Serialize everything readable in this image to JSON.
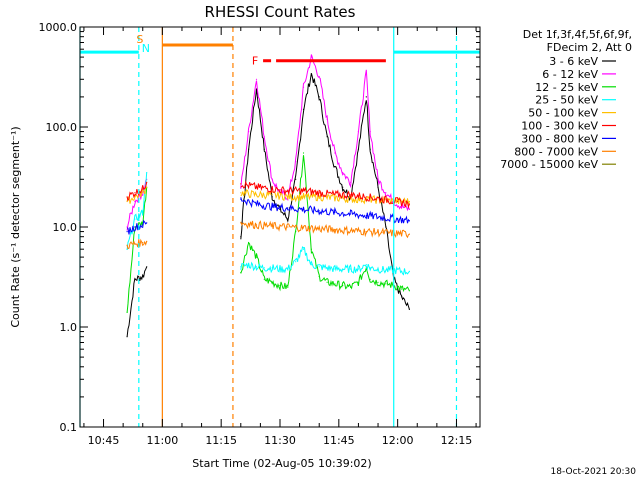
{
  "chart_data": {
    "type": "line",
    "title": "RHESSI Count Rates",
    "xlabel": "Start Time (02-Aug-05 10:39:02)",
    "ylabel": "Count Rate (s⁻¹ detector segment⁻¹)",
    "yscale": "log",
    "ylim": [
      0.1,
      1000
    ],
    "xlim": [
      "10:39",
      "12:21"
    ],
    "xticks": [
      "10:45",
      "11:00",
      "11:15",
      "11:30",
      "11:45",
      "12:00",
      "12:15"
    ],
    "yticks": [
      "0.1",
      "1.0",
      "10.0",
      "100.0",
      "1000.0"
    ],
    "grid": false,
    "legend_position": "right",
    "legend_header": [
      "Det 1f,3f,4f,5f,6f,9f,",
      "FDecim 2, Att 0"
    ],
    "timestamp": "18-Oct-2021 20:30",
    "series": [
      {
        "name": "3 - 6 keV",
        "color": "#000000",
        "x": [
          "10:51",
          "10:53",
          "10:55",
          "10:56",
          "11:20",
          "11:22",
          "11:24",
          "11:26",
          "11:28",
          "11:30",
          "11:32",
          "11:34",
          "11:36",
          "11:38",
          "11:40",
          "11:42",
          "11:44",
          "11:46",
          "11:48",
          "11:50",
          "11:52",
          "11:53",
          "11:55",
          "11:57",
          "11:59",
          "12:01",
          "12:03"
        ],
        "y": [
          0.8,
          3,
          3.2,
          4,
          8,
          60,
          240,
          60,
          20,
          15,
          12,
          30,
          150,
          340,
          200,
          80,
          40,
          25,
          20,
          60,
          200,
          60,
          25,
          10,
          3,
          2,
          1.5
        ]
      },
      {
        "name": "6 - 12 keV",
        "color": "#ff00ff",
        "x": [
          "10:51",
          "10:53",
          "10:55",
          "10:56",
          "11:20",
          "11:22",
          "11:24",
          "11:26",
          "11:28",
          "11:30",
          "11:32",
          "11:34",
          "11:36",
          "11:38",
          "11:40",
          "11:42",
          "11:44",
          "11:46",
          "11:48",
          "11:50",
          "11:52",
          "11:53",
          "11:55",
          "11:57",
          "11:59",
          "12:01",
          "12:03"
        ],
        "y": [
          10,
          18,
          22,
          30,
          25,
          90,
          300,
          80,
          30,
          22,
          20,
          45,
          250,
          500,
          320,
          120,
          55,
          35,
          28,
          90,
          350,
          90,
          30,
          22,
          18,
          16,
          15
        ]
      },
      {
        "name": "12 - 25 keV",
        "color": "#00dd00",
        "x": [
          "10:51",
          "10:53",
          "10:55",
          "10:56",
          "11:20",
          "11:22",
          "11:24",
          "11:26",
          "11:28",
          "11:30",
          "11:32",
          "11:34",
          "11:36",
          "11:38",
          "11:40",
          "11:42",
          "11:44",
          "11:46",
          "11:48",
          "11:50",
          "11:52",
          "11:53",
          "11:55",
          "11:57",
          "11:59",
          "12:01",
          "12:03"
        ],
        "y": [
          1.4,
          10,
          11,
          25,
          3.5,
          7,
          5,
          3,
          2.8,
          2.6,
          2.5,
          9,
          55,
          6,
          3.2,
          2.8,
          2.7,
          2.6,
          2.5,
          2.8,
          4,
          3,
          2.8,
          2.7,
          2.6,
          2.4,
          2.3
        ]
      },
      {
        "name": "25 - 50 keV",
        "color": "#00ffff",
        "x": [
          "10:51",
          "10:53",
          "10:55",
          "10:56",
          "11:20",
          "11:22",
          "11:24",
          "11:26",
          "11:28",
          "11:30",
          "11:32",
          "11:34",
          "11:36",
          "11:38",
          "11:40",
          "11:42",
          "11:44",
          "11:46",
          "11:48",
          "11:50",
          "11:52",
          "11:53",
          "11:55",
          "11:57",
          "11:59",
          "12:01",
          "12:03"
        ],
        "y": [
          6,
          12,
          14,
          35,
          4,
          4.2,
          4,
          3.9,
          3.9,
          3.8,
          3.8,
          4.5,
          6,
          4.2,
          4,
          3.9,
          3.8,
          3.8,
          3.8,
          3.8,
          4.2,
          3.9,
          3.8,
          3.7,
          3.7,
          3.6,
          3.6
        ]
      },
      {
        "name": "50 - 100 keV",
        "color": "#ffbf00",
        "x": [
          "10:51",
          "10:53",
          "10:55",
          "10:56",
          "11:20",
          "11:24",
          "11:28",
          "11:32",
          "11:36",
          "11:40",
          "11:44",
          "11:48",
          "11:52",
          "11:56",
          "12:00",
          "12:03"
        ],
        "y": [
          18,
          20,
          22,
          25,
          22,
          21,
          21,
          20,
          20,
          20,
          19.5,
          19,
          19,
          18.5,
          18,
          18
        ]
      },
      {
        "name": "100 - 300 keV",
        "color": "#ff0000",
        "x": [
          "10:51",
          "10:53",
          "10:55",
          "10:56",
          "11:20",
          "11:24",
          "11:28",
          "11:32",
          "11:36",
          "11:40",
          "11:44",
          "11:48",
          "11:52",
          "11:56",
          "12:00",
          "12:03"
        ],
        "y": [
          20,
          22,
          24,
          28,
          27,
          25,
          24,
          23,
          23,
          22,
          21,
          21,
          20,
          19,
          18,
          17
        ]
      },
      {
        "name": "300 - 800 keV",
        "color": "#0000ff",
        "x": [
          "10:51",
          "10:53",
          "10:55",
          "10:56",
          "11:20",
          "11:24",
          "11:28",
          "11:32",
          "11:36",
          "11:40",
          "11:44",
          "11:48",
          "11:52",
          "11:56",
          "12:00",
          "12:03"
        ],
        "y": [
          9,
          10,
          10.5,
          11,
          19,
          17,
          16,
          15.5,
          15,
          14.5,
          14,
          13.5,
          13,
          12.5,
          12,
          11.5
        ]
      },
      {
        "name": "800 - 7000 keV",
        "color": "#ff8000",
        "x": [
          "10:51",
          "10:53",
          "10:55",
          "10:56",
          "11:20",
          "11:24",
          "11:28",
          "11:32",
          "11:36",
          "11:40",
          "11:44",
          "11:48",
          "11:52",
          "11:56",
          "12:00",
          "12:03"
        ],
        "y": [
          6.5,
          6.8,
          7,
          7.2,
          11,
          10.5,
          10.2,
          10,
          9.8,
          9.6,
          9.4,
          9.2,
          9,
          8.8,
          8.6,
          8.5
        ]
      },
      {
        "name": "7000 - 15000 keV",
        "color": "#808000",
        "x": [],
        "y": []
      }
    ],
    "attenuator_bars": [
      {
        "color": "#00ffff",
        "x": [
          "10:39",
          "10:54"
        ],
        "y": 560
      },
      {
        "color": "#ff8000",
        "x": [
          "11:00",
          "11:18"
        ],
        "y": 660
      },
      {
        "color": "#00ffff",
        "x": [
          "11:59",
          "12:21"
        ],
        "y": 560
      }
    ],
    "flare_bar": {
      "label": "F",
      "color": "#ff0000",
      "x": [
        "11:29",
        "11:57"
      ],
      "y": 460
    },
    "saa_label": {
      "text": "S",
      "color": "#ff8000"
    },
    "night_label": {
      "text": "N",
      "color": "#00ffff"
    },
    "vertical_markers": [
      {
        "x": "10:39",
        "color": "#00ffff",
        "style": "solid"
      },
      {
        "x": "10:54",
        "color": "#00ffff",
        "style": "dashed"
      },
      {
        "x": "11:00",
        "color": "#ff8000",
        "style": "solid"
      },
      {
        "x": "11:18",
        "color": "#ff8000",
        "style": "dashed"
      },
      {
        "x": "11:59",
        "color": "#00ffff",
        "style": "solid"
      },
      {
        "x": "12:15",
        "color": "#00ffff",
        "style": "dashed"
      }
    ]
  }
}
